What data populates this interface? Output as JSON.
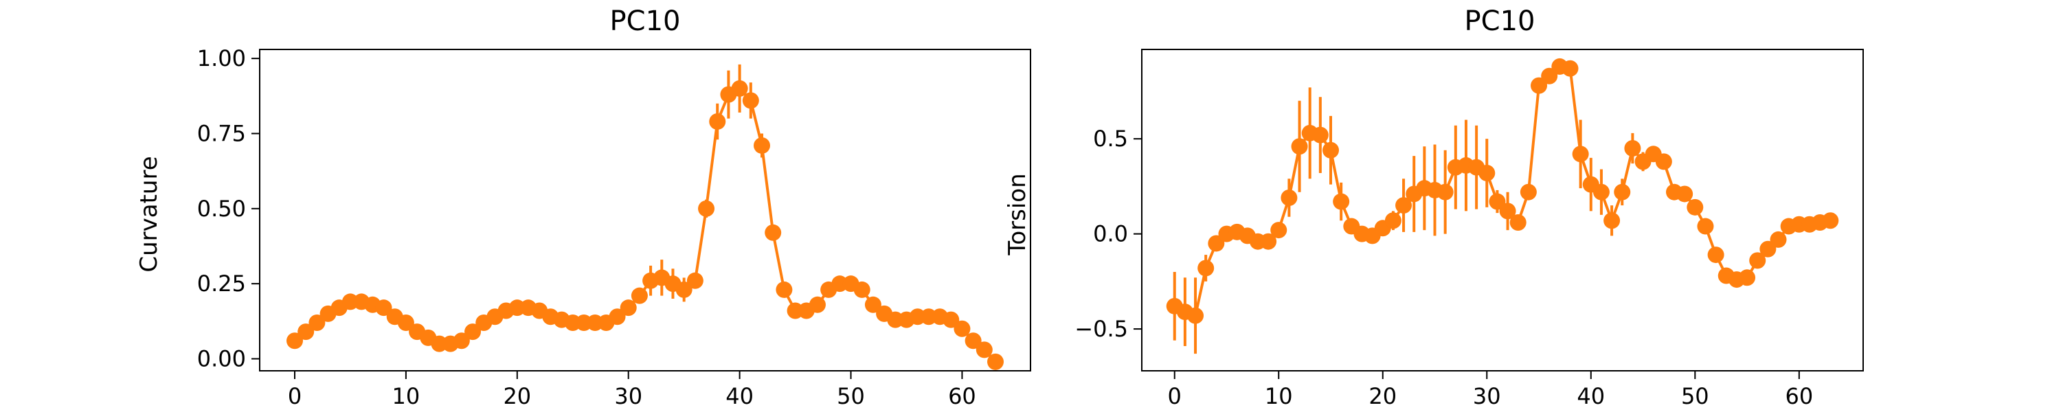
{
  "chart_data": [
    {
      "type": "line",
      "title": "PC10",
      "xlabel": "",
      "ylabel": "Curvature",
      "xlim": [
        -3.15,
        66.15
      ],
      "ylim": [
        -0.04,
        1.03
      ],
      "xticks": [
        0,
        10,
        20,
        30,
        40,
        50,
        60
      ],
      "xtick_labels": [
        "0",
        "10",
        "20",
        "30",
        "40",
        "50",
        "60"
      ],
      "yticks": [
        0,
        0.25,
        0.5,
        0.75,
        1.0
      ],
      "ytick_labels": [
        "0.00",
        "0.25",
        "0.50",
        "0.75",
        "1.00"
      ],
      "color": "#ff7f0e",
      "series": [
        {
          "x": [
            0,
            1,
            2,
            3,
            4,
            5,
            6,
            7,
            8,
            9,
            10,
            11,
            12,
            13,
            14,
            15,
            16,
            17,
            18,
            19,
            20,
            21,
            22,
            23,
            24,
            25,
            26,
            27,
            28,
            29,
            30,
            31,
            32,
            33,
            34,
            35,
            36,
            37,
            38,
            39,
            40,
            41,
            42,
            43,
            44,
            45,
            46,
            47,
            48,
            49,
            50,
            51,
            52,
            53,
            54,
            55,
            56,
            57,
            58,
            59,
            60,
            61,
            62,
            63
          ],
          "values": [
            0.06,
            0.09,
            0.12,
            0.15,
            0.17,
            0.19,
            0.19,
            0.18,
            0.17,
            0.14,
            0.12,
            0.09,
            0.07,
            0.05,
            0.05,
            0.06,
            0.09,
            0.12,
            0.14,
            0.16,
            0.17,
            0.17,
            0.16,
            0.14,
            0.13,
            0.12,
            0.12,
            0.12,
            0.12,
            0.14,
            0.17,
            0.21,
            0.26,
            0.27,
            0.25,
            0.23,
            0.26,
            0.5,
            0.79,
            0.88,
            0.9,
            0.86,
            0.71,
            0.42,
            0.23,
            0.16,
            0.16,
            0.18,
            0.23,
            0.25,
            0.25,
            0.23,
            0.18,
            0.15,
            0.13,
            0.13,
            0.14,
            0.14,
            0.14,
            0.13,
            0.1,
            0.06,
            0.03,
            -0.01
          ],
          "errors": [
            0,
            0,
            0,
            0,
            0,
            0,
            0,
            0,
            0,
            0,
            0,
            0,
            0,
            0,
            0,
            0,
            0,
            0,
            0,
            0,
            0,
            0,
            0,
            0,
            0,
            0,
            0,
            0,
            0,
            0,
            0,
            0,
            0.05,
            0.06,
            0.05,
            0.04,
            0,
            0.03,
            0.06,
            0.08,
            0.08,
            0.06,
            0.04,
            0,
            0,
            0,
            0,
            0,
            0,
            0,
            0,
            0,
            0,
            0,
            0,
            0,
            0,
            0,
            0,
            0,
            0,
            0,
            0,
            0
          ]
        }
      ]
    },
    {
      "type": "line",
      "title": "PC10",
      "xlabel": "",
      "ylabel": "Torsion",
      "xlim": [
        -3.15,
        66.15
      ],
      "ylim": [
        -0.72,
        0.97
      ],
      "xticks": [
        0,
        10,
        20,
        30,
        40,
        50,
        60
      ],
      "xtick_labels": [
        "0",
        "10",
        "20",
        "30",
        "40",
        "50",
        "60"
      ],
      "yticks": [
        -0.5,
        0,
        0.5
      ],
      "ytick_labels": [
        "−0.5",
        "0.0",
        "0.5"
      ],
      "color": "#ff7f0e",
      "series": [
        {
          "x": [
            0,
            1,
            2,
            3,
            4,
            5,
            6,
            7,
            8,
            9,
            10,
            11,
            12,
            13,
            14,
            15,
            16,
            17,
            18,
            19,
            20,
            21,
            22,
            23,
            24,
            25,
            26,
            27,
            28,
            29,
            30,
            31,
            32,
            33,
            34,
            35,
            36,
            37,
            38,
            39,
            40,
            41,
            42,
            43,
            44,
            45,
            46,
            47,
            48,
            49,
            50,
            51,
            52,
            53,
            54,
            55,
            56,
            57,
            58,
            59,
            60,
            61,
            62,
            63
          ],
          "values": [
            -0.38,
            -0.41,
            -0.43,
            -0.18,
            -0.05,
            0.0,
            0.01,
            -0.01,
            -0.04,
            -0.04,
            0.02,
            0.19,
            0.46,
            0.53,
            0.52,
            0.44,
            0.17,
            0.04,
            0.0,
            -0.01,
            0.03,
            0.07,
            0.15,
            0.21,
            0.24,
            0.23,
            0.22,
            0.35,
            0.36,
            0.35,
            0.32,
            0.17,
            0.12,
            0.06,
            0.22,
            0.78,
            0.83,
            0.88,
            0.87,
            0.42,
            0.26,
            0.22,
            0.07,
            0.22,
            0.45,
            0.38,
            0.42,
            0.38,
            0.22,
            0.21,
            0.14,
            0.04,
            -0.11,
            -0.22,
            -0.24,
            -0.23,
            -0.14,
            -0.08,
            -0.03,
            0.04,
            0.05,
            0.05,
            0.06,
            0.07
          ],
          "errors": [
            0.18,
            0.18,
            0.2,
            0.07,
            0,
            0,
            0,
            0,
            0,
            0,
            0.04,
            0.1,
            0.24,
            0.24,
            0.2,
            0.18,
            0.1,
            0,
            0,
            0,
            0,
            0.05,
            0.14,
            0.2,
            0.22,
            0.24,
            0.22,
            0.22,
            0.24,
            0.22,
            0.18,
            0.06,
            0.1,
            0,
            0,
            0,
            0,
            0,
            0,
            0.18,
            0.14,
            0.12,
            0.08,
            0.07,
            0.08,
            0.05,
            0,
            0,
            0,
            0,
            0,
            0,
            0,
            0,
            0,
            0,
            0,
            0,
            0,
            0,
            0,
            0,
            0,
            0
          ]
        }
      ]
    }
  ]
}
